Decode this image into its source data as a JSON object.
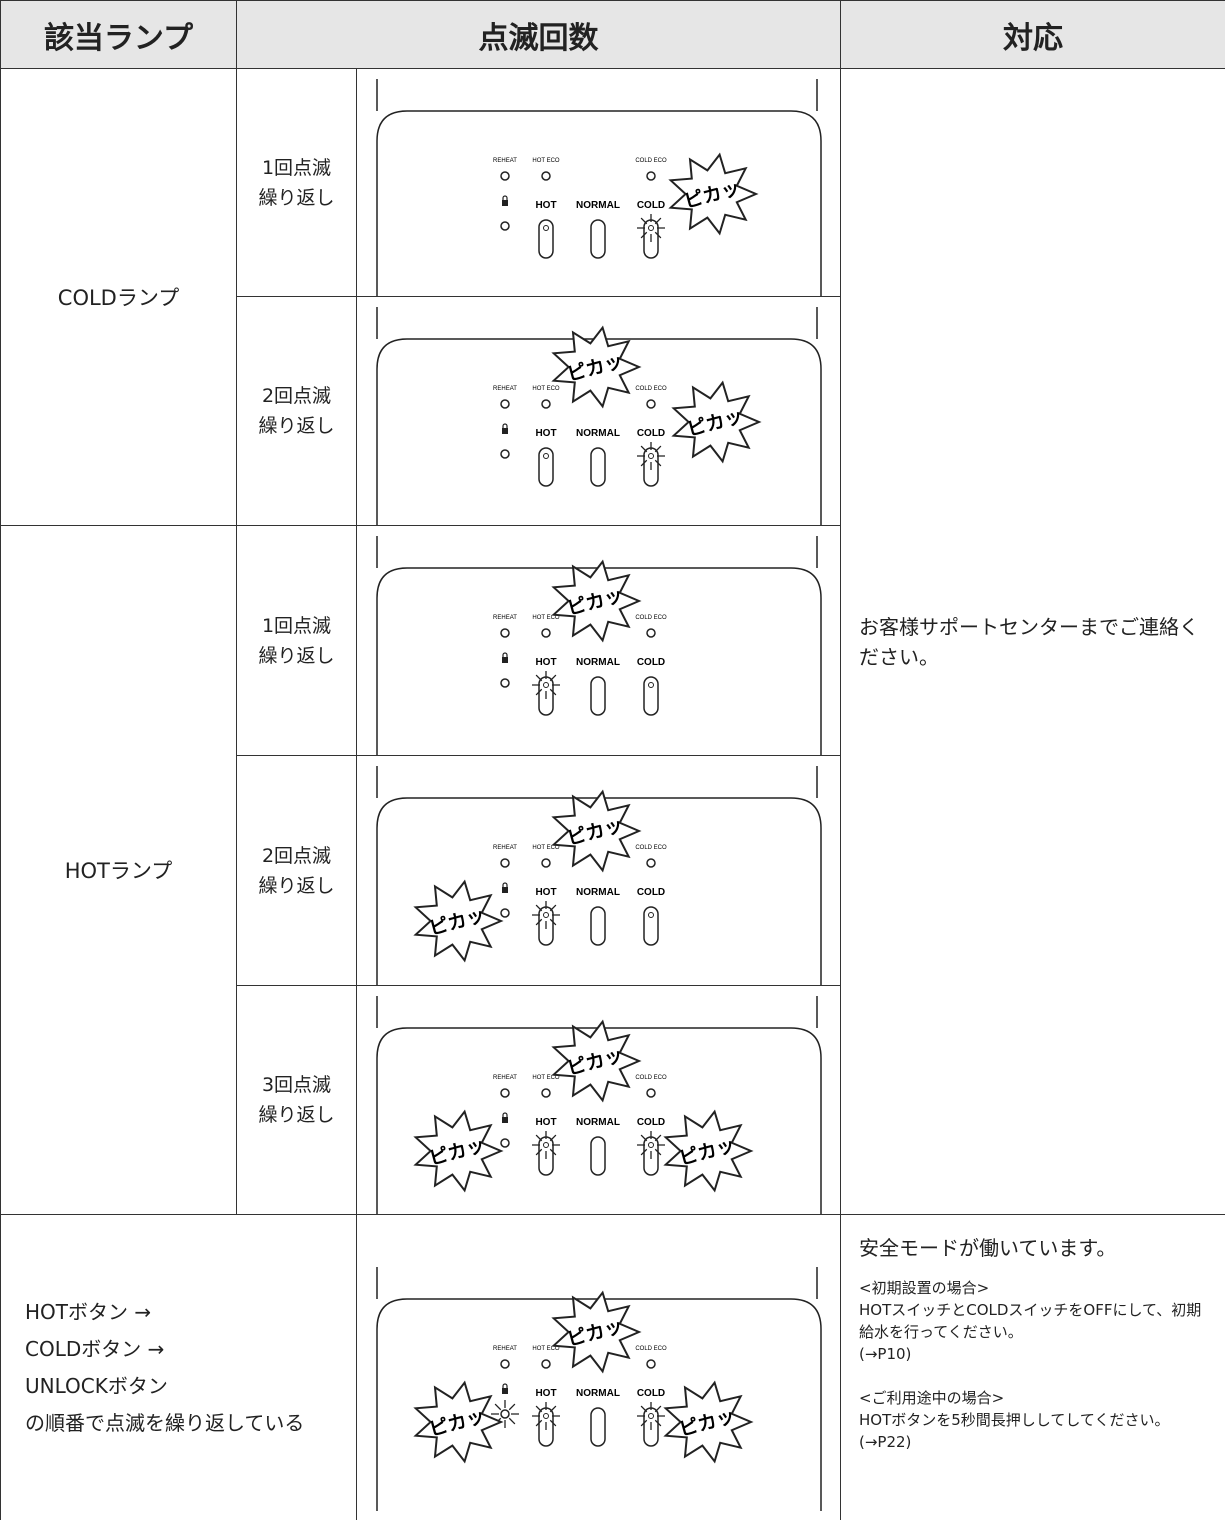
{
  "header": {
    "lamp": "該当ランプ",
    "count": "点滅回数",
    "action": "対応"
  },
  "groups": [
    {
      "lamp": "COLDランプ",
      "rows": [
        {
          "count": [
            "1回点滅",
            "繰り返し"
          ]
        },
        {
          "count": [
            "2回点滅",
            "繰り返し"
          ]
        }
      ]
    },
    {
      "lamp": "HOTランプ",
      "rows": [
        {
          "count": [
            "1回点滅",
            "繰り返し"
          ]
        },
        {
          "count": [
            "2回点滅",
            "繰り返し"
          ]
        },
        {
          "count": [
            "3回点滅",
            "繰り返し"
          ]
        }
      ]
    }
  ],
  "support_action": "お客様サポートセンターまでご連絡ください。",
  "safe_mode": {
    "condition": [
      "HOTボタン →",
      "COLDボタン →",
      "UNLOCKボタン",
      "の順番で点滅を繰り返している"
    ],
    "action": {
      "title": "安全モードが働いています。",
      "notes": [
        {
          "heading": "<初期設置の場合>",
          "text": "HOTスイッチとCOLDスイッチをOFFにして、初期給水を行ってください。",
          "ref": "(→P10)"
        },
        {
          "heading": "<ご利用途中の場合>",
          "text": "HOTボタンを5秒間長押ししてしてください。(→P22)"
        }
      ]
    }
  },
  "panel": {
    "labels": {
      "reheat": "REHEAT",
      "hot_eco": "HOT ECO",
      "cold_eco": "COLD ECO",
      "hot": "HOT",
      "normal": "NORMAL",
      "cold": "COLD"
    },
    "flash": "ピカッ"
  }
}
